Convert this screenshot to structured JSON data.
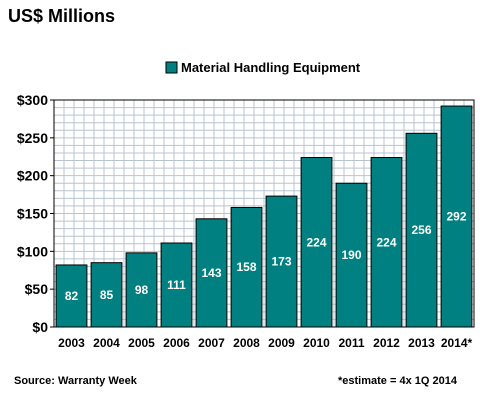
{
  "chart_data": {
    "type": "bar",
    "title": "US$ Millions",
    "legend_placement": "top",
    "categories": [
      "2003",
      "2004",
      "2005",
      "2006",
      "2007",
      "2008",
      "2009",
      "2010",
      "2011",
      "2012",
      "2013",
      "2014*"
    ],
    "series": [
      {
        "name": "Material Handling Equipment",
        "values": [
          82,
          85,
          98,
          111,
          143,
          158,
          173,
          224,
          190,
          224,
          256,
          292
        ],
        "data_labels": [
          "82",
          "85",
          "98",
          "111",
          "143",
          "158",
          "173",
          "224",
          "190",
          "224",
          "256",
          "292"
        ]
      }
    ],
    "y_ticks": [
      "$0",
      "$50",
      "$100",
      "$150",
      "$200",
      "$250",
      "$300"
    ],
    "y_tick_values": [
      0,
      50,
      100,
      150,
      200,
      250,
      300
    ],
    "ylim": [
      0,
      300
    ],
    "grid": true,
    "colors": {
      "bar": "#008080",
      "bar_edge": "#000000",
      "grid": "#b8c4d0"
    },
    "source_note": "Source: Warranty Week",
    "estimate_note": "*estimate = 4x 1Q 2014"
  }
}
